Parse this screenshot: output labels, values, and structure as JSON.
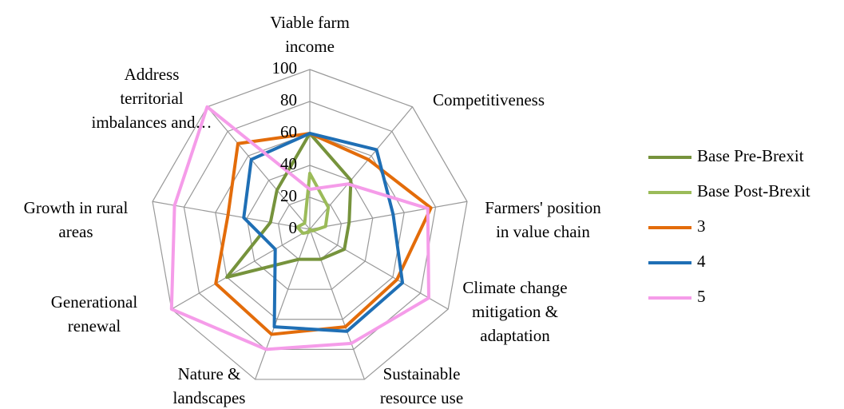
{
  "chart_data": {
    "type": "radar",
    "categories": [
      [
        "Viable farm",
        "income"
      ],
      [
        "Competitiveness"
      ],
      [
        "Farmers' position",
        "in value chain"
      ],
      [
        "Climate change",
        "mitigation &",
        "adaptation"
      ],
      [
        "Sustainable",
        "resource use"
      ],
      [
        "Nature &",
        "landscapes"
      ],
      [
        "Generational",
        "renewal"
      ],
      [
        "Growth in rural",
        "areas"
      ],
      [
        "Address",
        "territorial",
        "imbalances and…"
      ]
    ],
    "series": [
      {
        "name": "Base Pre-Brexit",
        "color": "#76933c",
        "values": [
          60,
          40,
          25,
          25,
          20,
          20,
          60,
          25,
          32
        ]
      },
      {
        "name": "Base Post-Brexit",
        "color": "#9bbb59",
        "values": [
          35,
          18,
          10,
          2,
          0,
          2,
          5,
          8,
          5
        ]
      },
      {
        "name": "3",
        "color": "#e36c0a",
        "values": [
          60,
          57,
          77,
          63,
          65,
          70,
          68,
          52,
          70
        ]
      },
      {
        "name": "4",
        "color": "#1f6fb5",
        "values": [
          60,
          65,
          53,
          67,
          68,
          65,
          25,
          42,
          57
        ]
      },
      {
        "name": "5",
        "color": "#f59ce9",
        "values": [
          25,
          37,
          75,
          86,
          76,
          80,
          100,
          86,
          100
        ]
      }
    ],
    "ylim": [
      0,
      100
    ],
    "yticks": [
      0,
      20,
      40,
      60,
      80,
      100
    ],
    "grid": true,
    "legend": "right"
  }
}
